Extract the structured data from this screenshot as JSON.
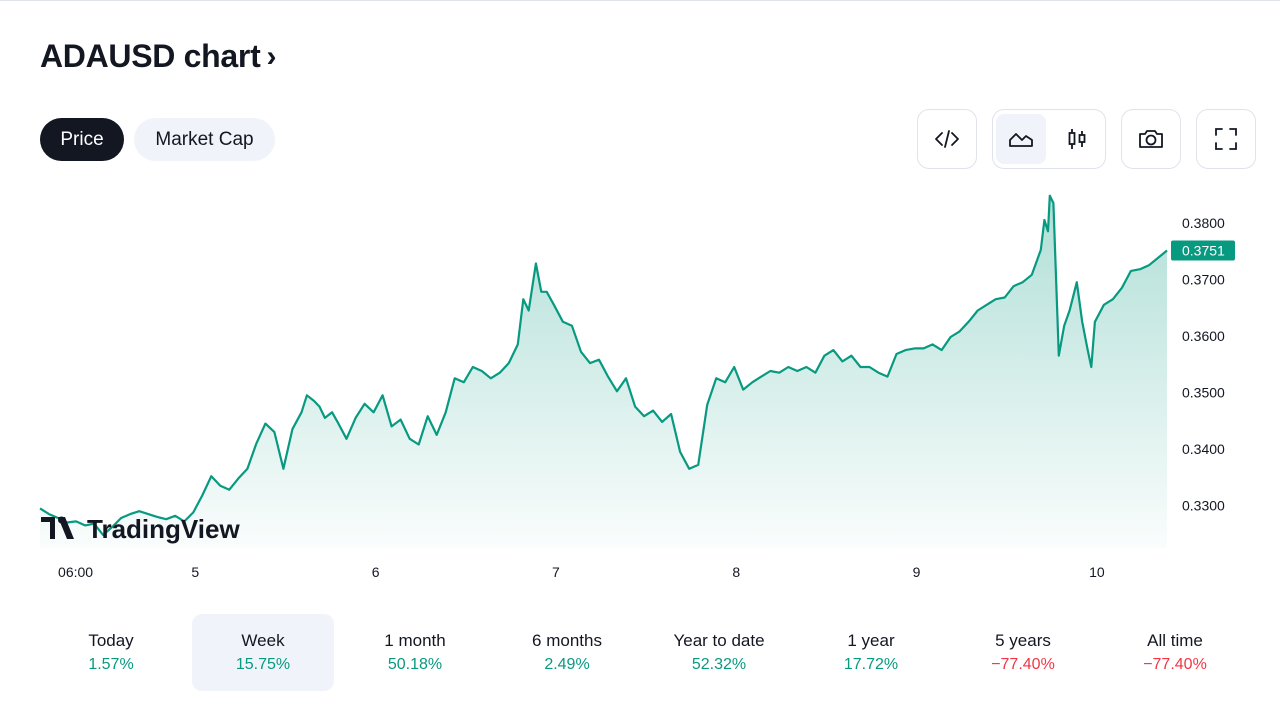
{
  "header": {
    "title": "ADAUSD chart",
    "chevron": "›"
  },
  "tabs": [
    {
      "label": "Price",
      "active": true
    },
    {
      "label": "Market Cap",
      "active": false
    }
  ],
  "toolbar": {
    "embed_icon": "code-icon",
    "line_icon": "area-chart-icon",
    "candle_icon": "candlestick-icon",
    "snapshot_icon": "camera-icon",
    "fullscreen_icon": "fullscreen-icon"
  },
  "watermark": "TradingView",
  "colors": {
    "line": "#089981",
    "positive": "#089981",
    "negative": "#f23645",
    "active_tab_bg": "#131722",
    "hover_bg": "#f0f3fa"
  },
  "chart_data": {
    "type": "area",
    "symbol": "ADAUSD",
    "x_tick_labels": [
      "06:00",
      "5",
      "6",
      "7",
      "8",
      "9",
      "10"
    ],
    "x_ticks_days": [
      4.25,
      5,
      6,
      7,
      8,
      9,
      10
    ],
    "y_tick_labels": [
      "0.3800",
      "0.3700",
      "0.3600",
      "0.3500",
      "0.3400",
      "0.3300"
    ],
    "y_ticks": [
      0.38,
      0.37,
      0.36,
      0.35,
      0.34,
      0.33
    ],
    "xlim_days": [
      4.15,
      10.4
    ],
    "ylim": [
      0.3225,
      0.3858
    ],
    "last_price": 0.3751,
    "last_price_label": "0.3751",
    "series": [
      {
        "x_days": [
          4.15,
          4.2,
          4.25,
          4.3,
          4.35,
          4.4,
          4.45,
          4.5,
          4.55,
          4.6,
          4.65,
          4.7,
          4.75,
          4.8,
          4.85,
          4.9,
          4.95,
          5.0,
          5.05,
          5.1,
          5.15,
          5.2,
          5.25,
          5.3,
          5.35,
          5.4,
          5.45,
          5.5,
          5.55,
          5.6,
          5.63,
          5.67,
          5.7,
          5.73,
          5.77,
          5.8,
          5.85,
          5.9,
          5.95,
          6.0,
          6.05,
          6.1,
          6.15,
          6.2,
          6.25,
          6.3,
          6.35,
          6.4,
          6.45,
          6.5,
          6.55,
          6.6,
          6.65,
          6.7,
          6.75,
          6.8,
          6.83,
          6.86,
          6.9,
          6.93,
          6.96,
          7.0,
          7.05,
          7.1,
          7.15,
          7.2,
          7.25,
          7.3,
          7.35,
          7.4,
          7.45,
          7.5,
          7.55,
          7.6,
          7.65,
          7.7,
          7.75,
          7.8,
          7.85,
          7.9,
          7.95,
          8.0,
          8.05,
          8.1,
          8.15,
          8.2,
          8.25,
          8.3,
          8.35,
          8.4,
          8.45,
          8.5,
          8.55,
          8.6,
          8.65,
          8.7,
          8.75,
          8.8,
          8.85,
          8.9,
          8.95,
          9.0,
          9.05,
          9.1,
          9.15,
          9.2,
          9.25,
          9.3,
          9.35,
          9.4,
          9.45,
          9.5,
          9.55,
          9.6,
          9.65,
          9.7,
          9.72,
          9.74,
          9.75,
          9.77,
          9.8,
          9.83,
          9.86,
          9.9,
          9.93,
          9.96,
          9.98,
          10.0,
          10.05,
          10.1,
          10.15,
          10.2,
          10.25,
          10.3,
          10.35,
          10.4
        ],
        "y": [
          0.3295,
          0.3285,
          0.3278,
          0.327,
          0.3272,
          0.3265,
          0.3268,
          0.3248,
          0.3262,
          0.3278,
          0.3285,
          0.329,
          0.3285,
          0.328,
          0.3276,
          0.3282,
          0.3272,
          0.3288,
          0.3318,
          0.3352,
          0.3335,
          0.3328,
          0.3348,
          0.3365,
          0.341,
          0.3445,
          0.343,
          0.3365,
          0.3435,
          0.3465,
          0.3495,
          0.3485,
          0.3475,
          0.3455,
          0.3465,
          0.3448,
          0.3418,
          0.3455,
          0.348,
          0.3465,
          0.3495,
          0.344,
          0.3452,
          0.3418,
          0.3408,
          0.3458,
          0.3425,
          0.3465,
          0.3525,
          0.3518,
          0.3545,
          0.3538,
          0.3525,
          0.3535,
          0.3552,
          0.3585,
          0.3665,
          0.3645,
          0.3728,
          0.3678,
          0.3678,
          0.3655,
          0.3625,
          0.3618,
          0.3572,
          0.3552,
          0.3558,
          0.3528,
          0.3502,
          0.3525,
          0.3475,
          0.3458,
          0.3468,
          0.3448,
          0.3462,
          0.3395,
          0.3365,
          0.3372,
          0.3478,
          0.3525,
          0.3518,
          0.3545,
          0.3505,
          0.3518,
          0.3528,
          0.3538,
          0.3535,
          0.3545,
          0.3538,
          0.3545,
          0.3535,
          0.3565,
          0.3575,
          0.3555,
          0.3565,
          0.3545,
          0.3545,
          0.3535,
          0.3528,
          0.3568,
          0.3575,
          0.3578,
          0.3578,
          0.3585,
          0.3575,
          0.3598,
          0.3608,
          0.3625,
          0.3645,
          0.3655,
          0.3665,
          0.3668,
          0.3688,
          0.3695,
          0.3708,
          0.3752,
          0.3805,
          0.3785,
          0.3848,
          0.3835,
          0.3565,
          0.3618,
          0.3645,
          0.3695,
          0.3625,
          0.3575,
          0.3545,
          0.3625,
          0.3655,
          0.3665,
          0.3685,
          0.3715,
          0.3718,
          0.3725,
          0.3738,
          0.3751
        ]
      }
    ]
  },
  "timeframes": [
    {
      "label": "Today",
      "change": "1.57%",
      "positive": true,
      "selected": false
    },
    {
      "label": "Week",
      "change": "15.75%",
      "positive": true,
      "selected": true
    },
    {
      "label": "1 month",
      "change": "50.18%",
      "positive": true,
      "selected": false
    },
    {
      "label": "6 months",
      "change": "2.49%",
      "positive": true,
      "selected": false
    },
    {
      "label": "Year to date",
      "change": "52.32%",
      "positive": true,
      "selected": false
    },
    {
      "label": "1 year",
      "change": "17.72%",
      "positive": true,
      "selected": false
    },
    {
      "label": "5 years",
      "change": "−77.40%",
      "positive": false,
      "selected": false
    },
    {
      "label": "All time",
      "change": "−77.40%",
      "positive": false,
      "selected": false
    }
  ]
}
